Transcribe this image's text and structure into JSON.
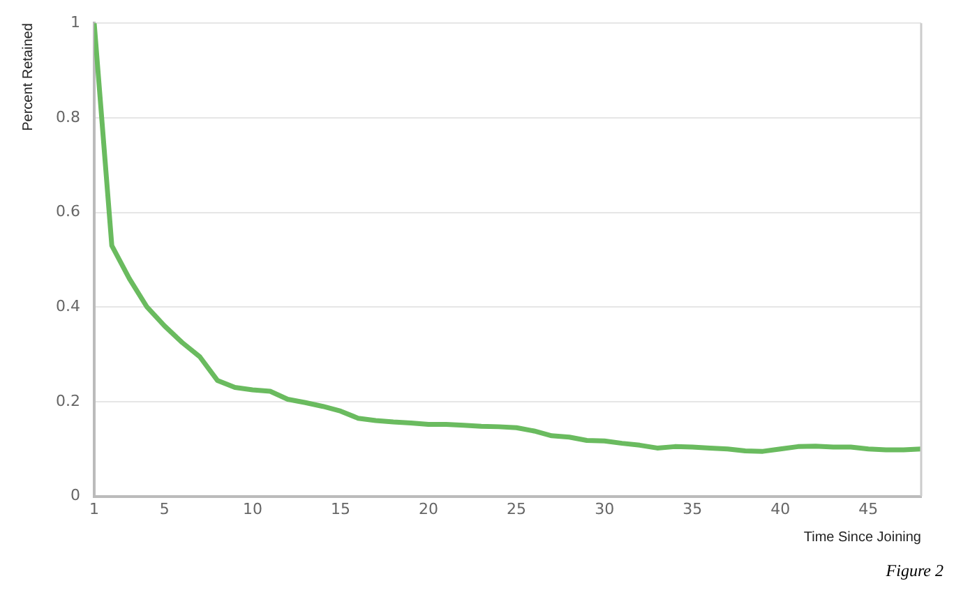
{
  "chart_data": {
    "type": "line",
    "xlabel": "Time Since Joining",
    "ylabel": "Percent Retained",
    "x": [
      1,
      2,
      3,
      4,
      5,
      6,
      7,
      8,
      9,
      10,
      11,
      12,
      13,
      14,
      15,
      16,
      17,
      18,
      19,
      20,
      21,
      22,
      23,
      24,
      25,
      26,
      27,
      28,
      29,
      30,
      31,
      32,
      33,
      34,
      35,
      36,
      37,
      38,
      39,
      40,
      41,
      42,
      43,
      44,
      45,
      46,
      47,
      48
    ],
    "series": [
      {
        "color": "#6abb5f",
        "values": [
          1.0,
          0.53,
          0.46,
          0.4,
          0.36,
          0.325,
          0.295,
          0.245,
          0.23,
          0.225,
          0.222,
          0.205,
          0.198,
          0.19,
          0.18,
          0.165,
          0.16,
          0.157,
          0.155,
          0.152,
          0.152,
          0.15,
          0.148,
          0.147,
          0.145,
          0.138,
          0.128,
          0.125,
          0.118,
          0.117,
          0.112,
          0.108,
          0.102,
          0.105,
          0.104,
          0.102,
          0.1,
          0.096,
          0.095,
          0.1,
          0.105,
          0.106,
          0.104,
          0.104,
          0.1,
          0.098,
          0.098,
          0.1
        ]
      }
    ],
    "xlim": [
      1,
      48
    ],
    "xticks": [
      1,
      5,
      10,
      15,
      20,
      25,
      30,
      35,
      40,
      45
    ],
    "ylim": [
      0,
      1
    ],
    "yticks": [
      0,
      0.2,
      0.4,
      0.6,
      0.8,
      1
    ],
    "grid": "y",
    "legend": false,
    "marker": "none",
    "line_style": "solid",
    "annotations": [
      "Figure 2"
    ]
  }
}
